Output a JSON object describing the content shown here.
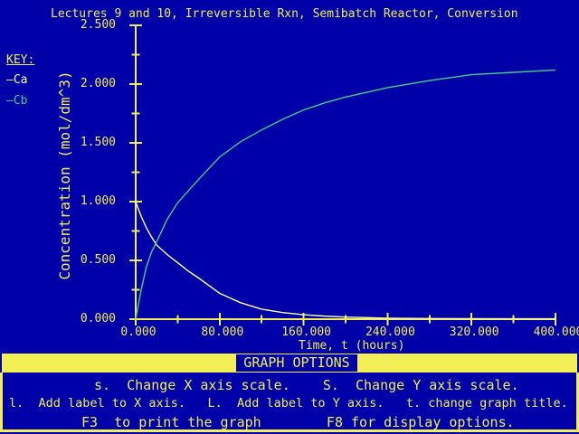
{
  "title": "Lectures 9 and 10, Irreversible Rxn, Semibatch Reactor, Conversion",
  "legend": {
    "heading": "KEY:",
    "items": [
      {
        "label": "—Ca",
        "color": "#FFFFA6"
      },
      {
        "label": "—Cb",
        "color": "#42CE80"
      }
    ]
  },
  "menu": {
    "header": "GRAPH OPTIONS",
    "line1": "s.  Change X axis scale.    S.  Change Y axis scale.",
    "line2": "l.  Add label to X axis.   L.  Add label to Y axis.   t. change graph title.",
    "line3": "F3  to print the graph        F8 for display options."
  },
  "colors": {
    "background": "#0000A8",
    "foreground": "#F2EE55",
    "series_ca": "#FFFFA6",
    "series_cb": "#42CE80"
  },
  "chart_data": {
    "type": "line",
    "title": "Lectures 9 and 10, Irreversible Rxn, Semibatch Reactor, Conversion",
    "xlabel": "Time, t (hours)",
    "ylabel": "Concentration (mol/dm^3)",
    "xlim": [
      0,
      400
    ],
    "ylim": [
      0,
      2.5
    ],
    "grid": false,
    "legend_position": "upper-left-outside",
    "x_major_ticks": [
      0,
      80,
      160,
      240,
      320,
      400
    ],
    "x_minor_ticks": [
      40,
      120,
      200,
      280,
      360
    ],
    "y_major_ticks": [
      0,
      0.5,
      1.0,
      1.5,
      2.0,
      2.5
    ],
    "y_minor_ticks": [
      0.25,
      0.75,
      1.25,
      1.75,
      2.25
    ],
    "x_tick_labels": [
      "0.000",
      "80.000",
      "160.000",
      "240.000",
      "320.000",
      "400.000"
    ],
    "y_tick_labels": [
      "0.000",
      "0.500",
      "1.000",
      "1.500",
      "2.000",
      "2.500"
    ],
    "x": [
      0,
      2,
      5,
      10,
      15,
      20,
      30,
      40,
      50,
      60,
      80,
      100,
      120,
      140,
      160,
      180,
      200,
      240,
      280,
      320,
      360,
      400
    ],
    "series": [
      {
        "name": "Ca",
        "color": "#FFFFA6",
        "values": [
          1.0,
          0.95,
          0.88,
          0.78,
          0.7,
          0.63,
          0.55,
          0.48,
          0.41,
          0.35,
          0.22,
          0.14,
          0.085,
          0.056,
          0.038,
          0.026,
          0.018,
          0.008,
          0.005,
          0.004,
          0.003,
          0.003
        ]
      },
      {
        "name": "Cb",
        "color": "#42CE80",
        "values": [
          0.0,
          0.1,
          0.24,
          0.44,
          0.57,
          0.66,
          0.85,
          0.99,
          1.09,
          1.19,
          1.38,
          1.51,
          1.61,
          1.7,
          1.78,
          1.84,
          1.89,
          1.97,
          2.03,
          2.08,
          2.1,
          2.12
        ]
      }
    ]
  }
}
